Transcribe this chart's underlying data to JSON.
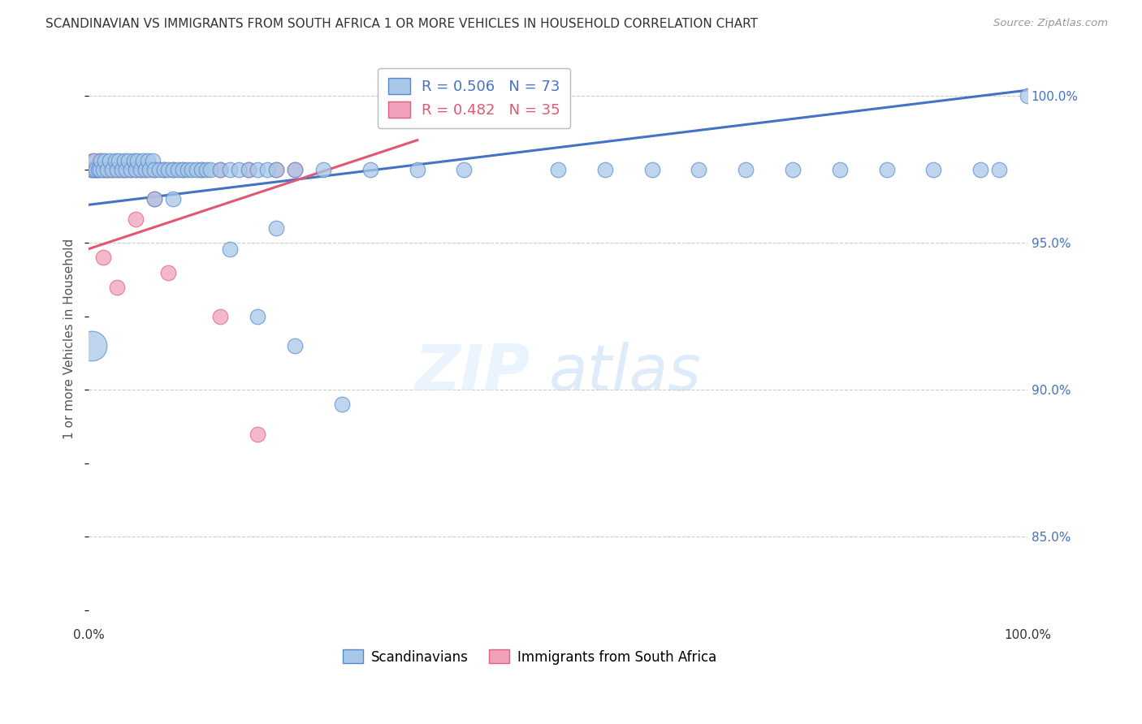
{
  "title": "SCANDINAVIAN VS IMMIGRANTS FROM SOUTH AFRICA 1 OR MORE VEHICLES IN HOUSEHOLD CORRELATION CHART",
  "source": "Source: ZipAtlas.com",
  "ylabel": "1 or more Vehicles in Household",
  "legend_label1": "R = 0.506   N = 73",
  "legend_label2": "R = 0.482   N = 35",
  "legend_entry1": "Scandinavians",
  "legend_entry2": "Immigrants from South Africa",
  "blue_color": "#A8C8E8",
  "pink_color": "#F0A0B8",
  "blue_edge_color": "#5588CC",
  "pink_edge_color": "#E06080",
  "blue_line_color": "#4472C4",
  "pink_line_color": "#E05870",
  "grid_color": "#cccccc",
  "ytick_color": "#4472C4",
  "title_color": "#333333",
  "source_color": "#999999",
  "ylabel_color": "#555555",
  "xlim": [
    0,
    100
  ],
  "ylim": [
    82,
    101.5
  ],
  "yticks": [
    85.0,
    90.0,
    95.0,
    100.0
  ],
  "ytick_labels": [
    "85.0%",
    "90.0%",
    "95.0%",
    "100.0%"
  ],
  "blue_line_x": [
    0,
    100
  ],
  "blue_line_y": [
    96.3,
    100.2
  ],
  "pink_line_x": [
    0,
    35
  ],
  "pink_line_y": [
    94.8,
    98.5
  ],
  "sc_x": [
    0.3,
    0.5,
    0.6,
    0.8,
    1.0,
    1.2,
    1.3,
    1.5,
    1.7,
    2.0,
    2.2,
    2.5,
    2.8,
    3.0,
    3.2,
    3.5,
    3.8,
    4.0,
    4.2,
    4.5,
    4.8,
    5.0,
    5.2,
    5.5,
    5.8,
    6.0,
    6.3,
    6.5,
    6.8,
    7.0,
    7.5,
    8.0,
    8.5,
    9.0,
    9.5,
    10.0,
    10.5,
    11.0,
    11.5,
    12.0,
    12.5,
    13.0,
    14.0,
    15.0,
    16.0,
    17.0,
    18.0,
    19.0,
    20.0,
    22.0,
    25.0,
    30.0,
    35.0,
    40.0,
    50.0,
    55.0,
    60.0,
    65.0,
    70.0,
    75.0,
    80.0,
    85.0,
    90.0,
    95.0,
    97.0,
    100.0,
    18.0,
    22.0,
    27.0,
    15.0,
    20.0,
    7.0,
    9.0
  ],
  "sc_y": [
    97.5,
    97.5,
    97.8,
    97.5,
    97.5,
    97.5,
    97.8,
    97.5,
    97.8,
    97.5,
    97.8,
    97.5,
    97.8,
    97.5,
    97.8,
    97.5,
    97.8,
    97.5,
    97.8,
    97.5,
    97.8,
    97.5,
    97.8,
    97.5,
    97.8,
    97.5,
    97.8,
    97.5,
    97.8,
    97.5,
    97.5,
    97.5,
    97.5,
    97.5,
    97.5,
    97.5,
    97.5,
    97.5,
    97.5,
    97.5,
    97.5,
    97.5,
    97.5,
    97.5,
    97.5,
    97.5,
    97.5,
    97.5,
    97.5,
    97.5,
    97.5,
    97.5,
    97.5,
    97.5,
    97.5,
    97.5,
    97.5,
    97.5,
    97.5,
    97.5,
    97.5,
    97.5,
    97.5,
    97.5,
    97.5,
    100.0,
    92.5,
    91.5,
    89.5,
    94.8,
    95.5,
    96.5,
    96.5
  ],
  "sc_sizes": [
    150,
    150,
    150,
    150,
    150,
    150,
    150,
    150,
    150,
    150,
    150,
    150,
    150,
    150,
    150,
    150,
    150,
    150,
    150,
    150,
    150,
    150,
    150,
    150,
    150,
    150,
    150,
    150,
    150,
    150,
    150,
    150,
    150,
    150,
    150,
    150,
    150,
    150,
    150,
    150,
    150,
    150,
    150,
    150,
    150,
    150,
    150,
    150,
    150,
    150,
    150,
    150,
    150,
    150,
    150,
    150,
    150,
    150,
    150,
    150,
    150,
    150,
    150,
    150,
    150,
    150,
    150,
    150,
    150,
    150,
    150,
    150,
    150
  ],
  "sa_x": [
    0.2,
    0.4,
    0.6,
    0.8,
    1.0,
    1.2,
    1.5,
    1.8,
    2.0,
    2.3,
    2.6,
    3.0,
    3.3,
    3.7,
    4.0,
    4.5,
    5.0,
    5.5,
    6.0,
    7.0,
    8.0,
    9.0,
    10.0,
    12.0,
    14.0,
    17.0,
    20.0,
    22.0,
    1.5,
    3.0,
    5.0,
    7.0,
    8.5,
    14.0,
    18.0
  ],
  "sa_y": [
    97.5,
    97.8,
    97.5,
    97.5,
    97.5,
    97.8,
    97.5,
    97.5,
    97.5,
    97.5,
    97.5,
    97.5,
    97.5,
    97.5,
    97.5,
    97.5,
    97.5,
    97.5,
    97.5,
    97.5,
    97.5,
    97.5,
    97.5,
    97.5,
    97.5,
    97.5,
    97.5,
    97.5,
    94.5,
    93.5,
    95.8,
    96.5,
    94.0,
    92.5,
    88.5
  ],
  "sa_sizes": [
    150,
    150,
    150,
    150,
    150,
    150,
    150,
    150,
    150,
    150,
    150,
    150,
    150,
    150,
    150,
    150,
    150,
    150,
    150,
    150,
    150,
    150,
    150,
    150,
    150,
    150,
    150,
    150,
    150,
    150,
    150,
    150,
    150,
    150,
    150
  ],
  "large_blue_x": 0.3,
  "large_blue_y": 91.5,
  "large_blue_size": 700
}
